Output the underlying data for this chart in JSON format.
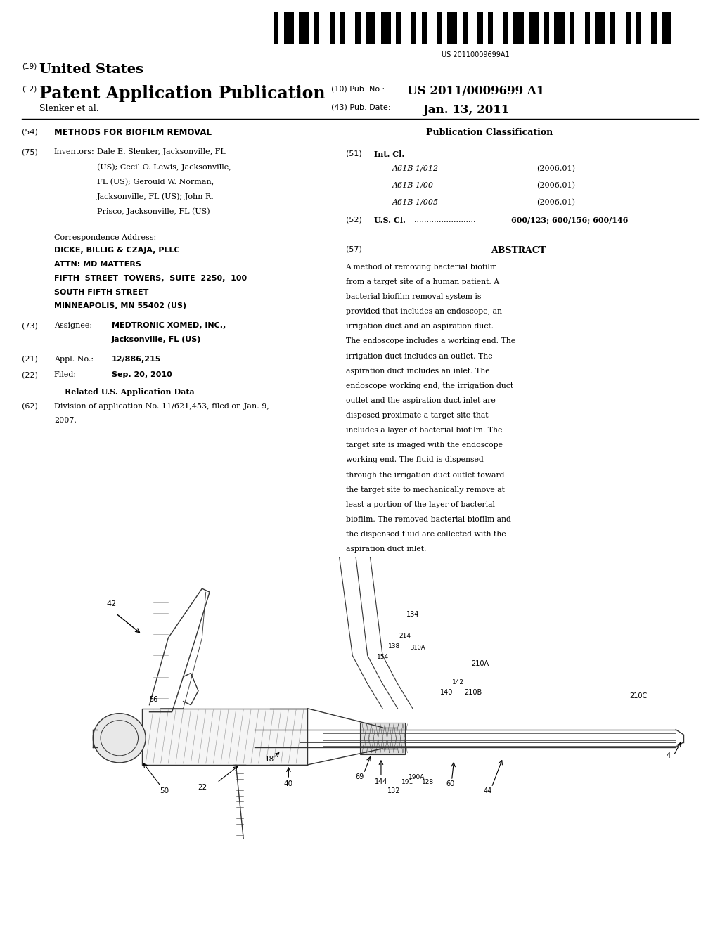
{
  "background_color": "#ffffff",
  "page_width": 10.24,
  "page_height": 13.2,
  "barcode_text": "US 20110009699A1",
  "patent_number_19": "(19)",
  "patent_title_19": "United States",
  "patent_number_12": "(12)",
  "patent_title_12": "Patent Application Publication",
  "pub_no_label": "(10) Pub. No.:",
  "pub_no_value": "US 2011/0009699 A1",
  "applicant": "Slenker et al.",
  "pub_date_label": "(43) Pub. Date:",
  "pub_date_value": "Jan. 13, 2011",
  "field54_label": "(54)",
  "field54_title": "METHODS FOR BIOFILM REMOVAL",
  "field75_label": "(75)",
  "field75_name": "Inventors:",
  "field75_value": "Dale E. Slenker, Jacksonville, FL\n(US); Cecil O. Lewis, Jacksonville,\nFL (US); Gerould W. Norman,\nJacksonville, FL (US); John R.\nPrisco, Jacksonville, FL (US)",
  "correspondence_label": "Correspondence Address:",
  "correspondence_lines": [
    "DICKE, BILLIG & CZAJA, PLLC",
    "ATTN: MD MATTERS",
    "FIFTH  STREET  TOWERS,  SUITE  2250,  100",
    "SOUTH FIFTH STREET",
    "MINNEAPOLIS, MN 55402 (US)"
  ],
  "field73_label": "(73)",
  "field73_name": "Assignee:",
  "field73_value": "MEDTRONIC XOMED, INC.,\nJacksonville, FL (US)",
  "field21_label": "(21)",
  "field21_name": "Appl. No.:",
  "field21_value": "12/886,215",
  "field22_label": "(22)",
  "field22_name": "Filed:",
  "field22_value": "Sep. 20, 2010",
  "related_title": "Related U.S. Application Data",
  "field62_label": "(62)",
  "field62_value": "Division of application No. 11/621,453, filed on Jan. 9,\n2007.",
  "pub_class_title": "Publication Classification",
  "field51_label": "(51)",
  "field51_name": "Int. Cl.",
  "int_cl_rows": [
    [
      "A61B 1/012",
      "(2006.01)"
    ],
    [
      "A61B 1/00",
      "(2006.01)"
    ],
    [
      "A61B 1/005",
      "(2006.01)"
    ]
  ],
  "field52_label": "(52)",
  "field52_name": "U.S. Cl.",
  "field52_value": "600/123; 600/156; 600/146",
  "field57_label": "(57)",
  "abstract_title": "ABSTRACT",
  "abstract_text": "A method of removing bacterial biofilm from a target site of a human patient. A bacterial biofilm removal system is provided that includes an endoscope, an irrigation duct and an aspiration duct. The endoscope includes a working end. The irrigation duct includes an outlet. The aspiration duct includes an inlet. The endoscope working end, the irrigation duct outlet and the aspiration duct inlet are disposed proximate a target site that includes a layer of bacterial biofilm. The target site is imaged with the endoscope working end. The fluid is dispensed through the irrigation duct outlet toward the target site to mechanically remove at least a portion of the layer of bacterial biofilm. The removed bacterial biofilm and the dispensed fluid are collected with the aspiration duct inlet."
}
